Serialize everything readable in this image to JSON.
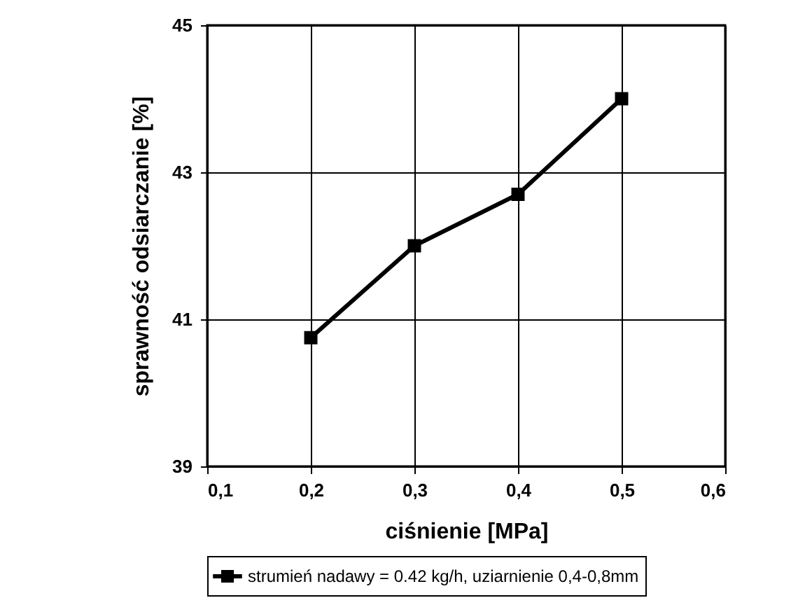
{
  "chart_data": {
    "type": "line",
    "xlabel": "ciśnienie [MPa]",
    "ylabel": "sprawność odsiarczanie [%]",
    "x": [
      0.2,
      0.3,
      0.4,
      0.5
    ],
    "series": [
      {
        "name": "strumień nadawy = 0.42 kg/h, uziarnienie 0,4-0,8mm",
        "color": "#000000",
        "values": [
          40.75,
          42.0,
          42.7,
          44.0
        ]
      }
    ],
    "xlim": [
      0.1,
      0.6
    ],
    "xticks": [
      {
        "value": 0.1,
        "label": "0,1"
      },
      {
        "value": 0.2,
        "label": "0,2"
      },
      {
        "value": 0.3,
        "label": "0,3"
      },
      {
        "value": 0.4,
        "label": "0,4"
      },
      {
        "value": 0.5,
        "label": "0,5"
      },
      {
        "value": 0.6,
        "label": "0,6"
      }
    ],
    "ylim": [
      39,
      45
    ],
    "yticks": [
      39,
      41,
      43,
      45
    ],
    "grid": true,
    "legend": "bottom",
    "marker": "square",
    "line_style": "solid"
  }
}
